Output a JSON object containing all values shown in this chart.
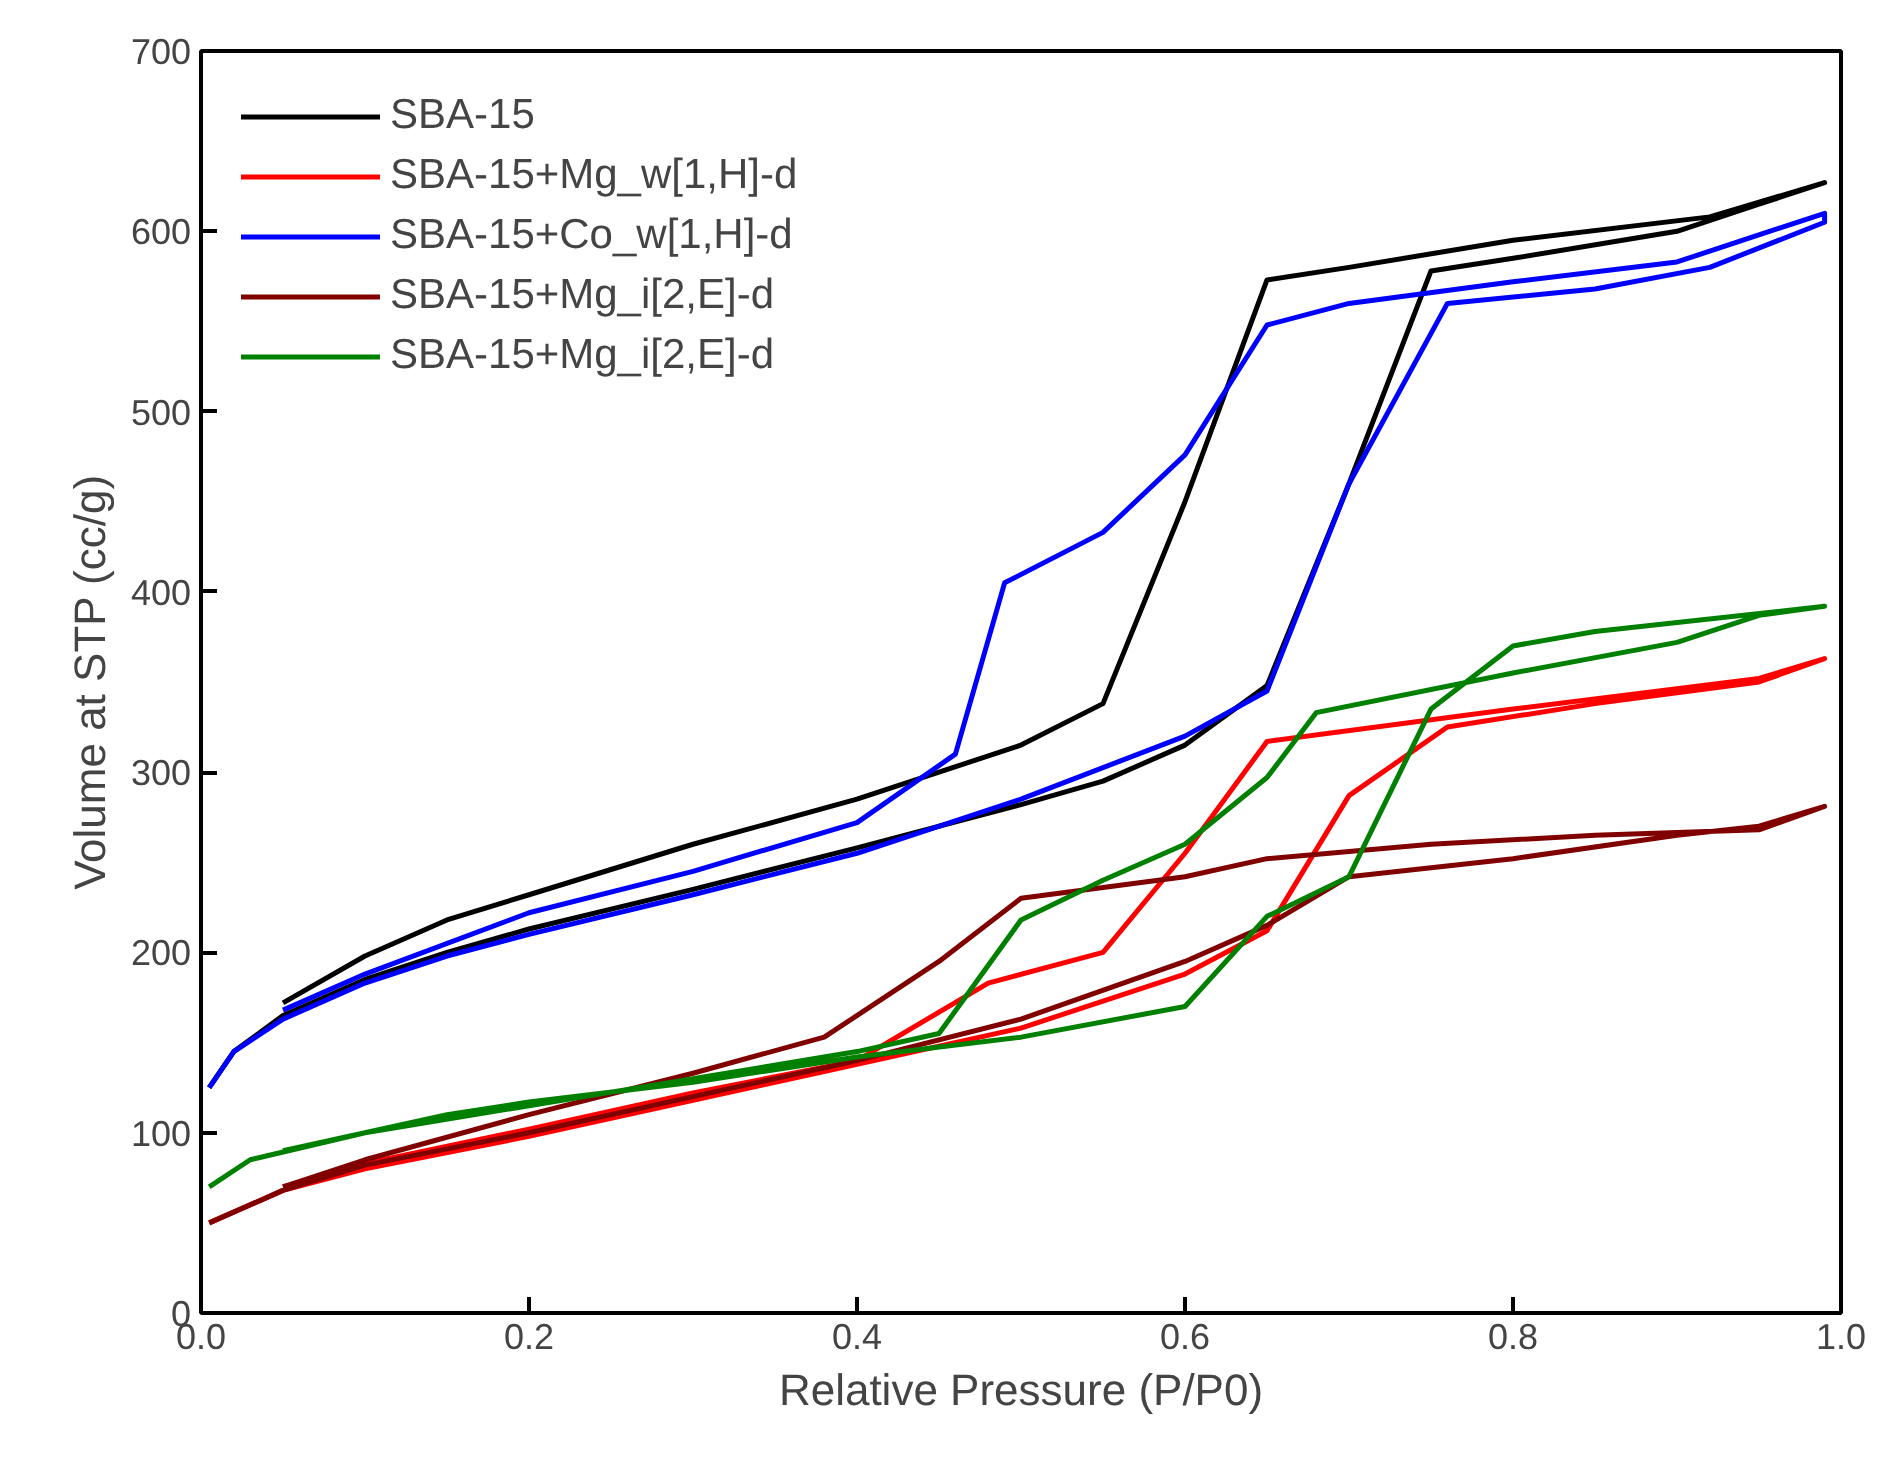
{
  "chart_data": {
    "type": "line",
    "xlabel": "Relative Pressure (P/P0)",
    "ylabel": "Volume at STP (cc/g)",
    "xlim": [
      0,
      1
    ],
    "ylim": [
      0,
      700
    ],
    "xticks": [
      {
        "value": 0,
        "label": "0.0"
      },
      0.2,
      0.4,
      0.6,
      0.8,
      {
        "value": 1,
        "label": "1.0"
      }
    ],
    "yticks": [
      0,
      100,
      200,
      300,
      400,
      500,
      600,
      700
    ],
    "grid": false,
    "legend": "top left",
    "marker": "none",
    "line_style": "solid",
    "series": [
      {
        "name": "SBA-15",
        "color": "#000000",
        "x": [
          0.005,
          0.02,
          0.05,
          0.1,
          0.15,
          0.2,
          0.3,
          0.4,
          0.5,
          0.55,
          0.6,
          0.65,
          0.7,
          0.75,
          0.8,
          0.9,
          0.95,
          0.99,
          0.92,
          0.8,
          0.7,
          0.65,
          0.6,
          0.55,
          0.5,
          0.4,
          0.3,
          0.2,
          0.15,
          0.1,
          0.05
        ],
        "values": [
          125,
          145,
          165,
          185,
          200,
          213,
          235,
          258,
          282,
          295,
          315,
          348,
          460,
          578,
          585,
          600,
          615,
          627,
          608,
          595,
          580,
          573,
          450,
          338,
          315,
          285,
          260,
          232,
          218,
          198,
          172
        ]
      },
      {
        "name": "SBA-15+Mg_w[1,H]-d",
        "color": "#ff0000",
        "x": [
          0.005,
          0.05,
          0.1,
          0.2,
          0.3,
          0.4,
          0.5,
          0.6,
          0.65,
          0.7,
          0.76,
          0.85,
          0.95,
          0.99,
          0.95,
          0.8,
          0.65,
          0.6,
          0.55,
          0.48,
          0.4,
          0.3,
          0.2,
          0.1,
          0.05
        ],
        "values": [
          50,
          68,
          80,
          98,
          118,
          138,
          158,
          188,
          212,
          287,
          325,
          338,
          350,
          363,
          352,
          335,
          317,
          255,
          200,
          183,
          140,
          122,
          102,
          83,
          70
        ]
      },
      {
        "name": "SBA-15+Co_w[1,H]-d",
        "color": "#0000ff",
        "x": [
          0.005,
          0.02,
          0.05,
          0.1,
          0.15,
          0.2,
          0.3,
          0.4,
          0.5,
          0.6,
          0.65,
          0.7,
          0.76,
          0.85,
          0.92,
          0.99,
          0.99,
          0.9,
          0.8,
          0.7,
          0.65,
          0.6,
          0.55,
          0.49,
          0.46,
          0.4,
          0.3,
          0.2,
          0.1,
          0.05
        ],
        "values": [
          125,
          145,
          163,
          183,
          198,
          210,
          232,
          255,
          285,
          320,
          345,
          460,
          560,
          568,
          580,
          605,
          610,
          583,
          572,
          560,
          548,
          476,
          433,
          405,
          310,
          272,
          245,
          222,
          188,
          168
        ]
      },
      {
        "name": "SBA-15+Mg_i[2,E]-d",
        "color": "#800000",
        "x": [
          0.005,
          0.05,
          0.1,
          0.2,
          0.3,
          0.4,
          0.5,
          0.6,
          0.65,
          0.7,
          0.8,
          0.9,
          0.95,
          0.99,
          0.95,
          0.85,
          0.75,
          0.65,
          0.6,
          0.5,
          0.45,
          0.38,
          0.3,
          0.2,
          0.1,
          0.05
        ],
        "values": [
          50,
          68,
          82,
          100,
          120,
          140,
          163,
          195,
          215,
          242,
          252,
          265,
          270,
          281,
          268,
          265,
          260,
          252,
          242,
          230,
          195,
          153,
          133,
          110,
          85,
          70
        ]
      },
      {
        "name": "SBA-15+Mg_i[2,E]-d",
        "color": "#008000",
        "x": [
          0.005,
          0.03,
          0.1,
          0.15,
          0.2,
          0.3,
          0.4,
          0.5,
          0.6,
          0.65,
          0.7,
          0.75,
          0.8,
          0.85,
          0.99,
          0.95,
          0.9,
          0.8,
          0.68,
          0.65,
          0.6,
          0.55,
          0.5,
          0.45,
          0.4,
          0.3,
          0.2,
          0.1,
          0.05
        ],
        "values": [
          70,
          85,
          100,
          110,
          117,
          128,
          142,
          153,
          170,
          220,
          242,
          335,
          370,
          378,
          392,
          387,
          372,
          355,
          333,
          297,
          260,
          240,
          218,
          155,
          145,
          130,
          115,
          100,
          90
        ]
      }
    ]
  }
}
